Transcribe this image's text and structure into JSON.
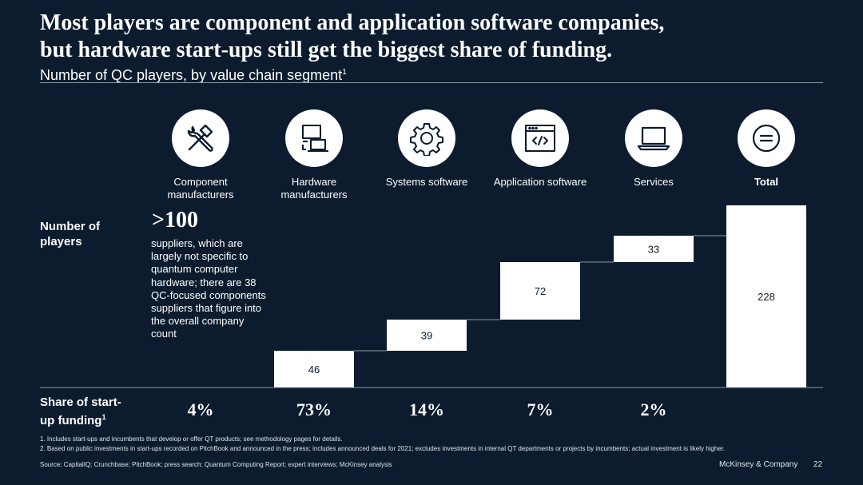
{
  "title_line1": "Most players are component and application software companies,",
  "title_line2": "but hardware start-ups still get the biggest share of  funding.",
  "subtitle": "Number of QC players, by value chain segment",
  "subtitle_sup": "1",
  "row_labels": {
    "players_line1": "Number of",
    "players_line2": "players",
    "funding_line1": "Share of start-",
    "funding_line2": "up funding",
    "funding_sup": "1"
  },
  "component_note": {
    "big_number": ">100",
    "text": "suppliers, which are largely not specific to quantum computer hardware; there are 38 QC-focused components suppliers that figure into the overall company count"
  },
  "icons": [
    "tools-icon",
    "hardware-devices-icon",
    "gear-icon",
    "code-window-icon",
    "laptop-icon",
    "equals-icon"
  ],
  "chart_data": {
    "type": "waterfall",
    "title": "Number of QC players, by value chain segment",
    "categories": [
      "Component manufacturers",
      "Hardware manufacturers",
      "Systems software",
      "Application software",
      "Services",
      "Total"
    ],
    "category_lines": [
      [
        "Component",
        "manufacturers"
      ],
      [
        "Hardware",
        "manufacturers"
      ],
      [
        "Systems software"
      ],
      [
        "Application software"
      ],
      [
        "Services"
      ],
      [
        "Total"
      ]
    ],
    "values": [
      null,
      46,
      39,
      72,
      33,
      228
    ],
    "is_total": [
      false,
      false,
      false,
      false,
      false,
      true
    ],
    "value_labels": [
      "",
      "46",
      "39",
      "72",
      "33",
      "228"
    ],
    "funding_share": [
      "4%",
      "73%",
      "14%",
      "7%",
      "2%",
      ""
    ],
    "ylim": [
      0,
      228
    ]
  },
  "footnotes": [
    "1. Includes start-ups and incumbents that develop or offer QT products; see methodology pages for details.",
    "2. Based on public investments in start-ups recorded on PitchBook and announced in the press; includes announced deals for 2021; excludes investments in internal QT departments or projects by incumbents; actual investment is likely higher."
  ],
  "source": "Source: CapitalIQ; Crunchbase; PitchBook; press search; Quantum Computing Report; expert interviews; McKinsey analysis",
  "brand": "McKinsey & Company",
  "page_number": "22"
}
